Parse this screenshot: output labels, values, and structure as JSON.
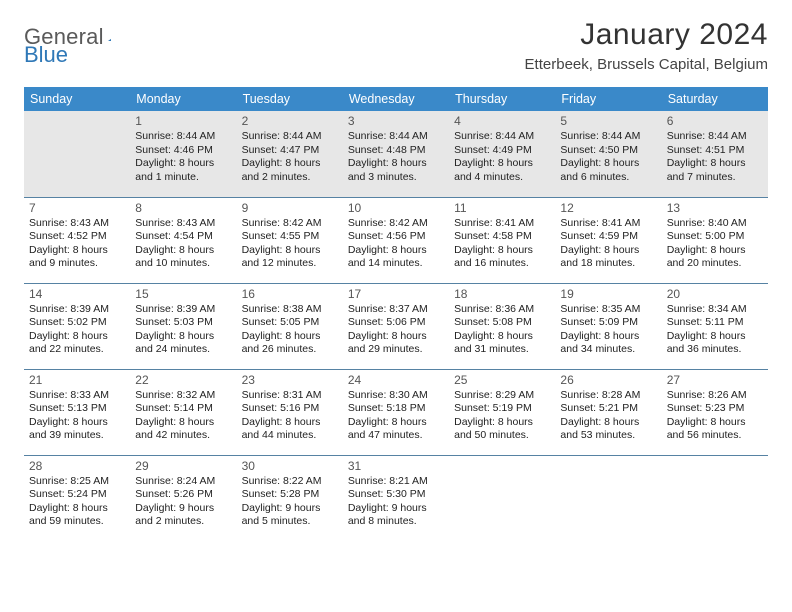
{
  "brand": {
    "word1": "General",
    "word2": "Blue"
  },
  "title": "January 2024",
  "location": "Etterbeek, Brussels Capital, Belgium",
  "colors": {
    "header_bg": "#3a89c9",
    "header_fg": "#ffffff",
    "row_divider": "#5682a3",
    "first_row_bg": "#e7e7e7",
    "logo_gray": "#5a5a5a",
    "logo_blue": "#2f78b7"
  },
  "day_headers": [
    "Sunday",
    "Monday",
    "Tuesday",
    "Wednesday",
    "Thursday",
    "Friday",
    "Saturday"
  ],
  "weeks": [
    [
      null,
      {
        "n": "1",
        "sr": "8:44 AM",
        "ss": "4:46 PM",
        "dl": "8 hours and 1 minute."
      },
      {
        "n": "2",
        "sr": "8:44 AM",
        "ss": "4:47 PM",
        "dl": "8 hours and 2 minutes."
      },
      {
        "n": "3",
        "sr": "8:44 AM",
        "ss": "4:48 PM",
        "dl": "8 hours and 3 minutes."
      },
      {
        "n": "4",
        "sr": "8:44 AM",
        "ss": "4:49 PM",
        "dl": "8 hours and 4 minutes."
      },
      {
        "n": "5",
        "sr": "8:44 AM",
        "ss": "4:50 PM",
        "dl": "8 hours and 6 minutes."
      },
      {
        "n": "6",
        "sr": "8:44 AM",
        "ss": "4:51 PM",
        "dl": "8 hours and 7 minutes."
      }
    ],
    [
      {
        "n": "7",
        "sr": "8:43 AM",
        "ss": "4:52 PM",
        "dl": "8 hours and 9 minutes."
      },
      {
        "n": "8",
        "sr": "8:43 AM",
        "ss": "4:54 PM",
        "dl": "8 hours and 10 minutes."
      },
      {
        "n": "9",
        "sr": "8:42 AM",
        "ss": "4:55 PM",
        "dl": "8 hours and 12 minutes."
      },
      {
        "n": "10",
        "sr": "8:42 AM",
        "ss": "4:56 PM",
        "dl": "8 hours and 14 minutes."
      },
      {
        "n": "11",
        "sr": "8:41 AM",
        "ss": "4:58 PM",
        "dl": "8 hours and 16 minutes."
      },
      {
        "n": "12",
        "sr": "8:41 AM",
        "ss": "4:59 PM",
        "dl": "8 hours and 18 minutes."
      },
      {
        "n": "13",
        "sr": "8:40 AM",
        "ss": "5:00 PM",
        "dl": "8 hours and 20 minutes."
      }
    ],
    [
      {
        "n": "14",
        "sr": "8:39 AM",
        "ss": "5:02 PM",
        "dl": "8 hours and 22 minutes."
      },
      {
        "n": "15",
        "sr": "8:39 AM",
        "ss": "5:03 PM",
        "dl": "8 hours and 24 minutes."
      },
      {
        "n": "16",
        "sr": "8:38 AM",
        "ss": "5:05 PM",
        "dl": "8 hours and 26 minutes."
      },
      {
        "n": "17",
        "sr": "8:37 AM",
        "ss": "5:06 PM",
        "dl": "8 hours and 29 minutes."
      },
      {
        "n": "18",
        "sr": "8:36 AM",
        "ss": "5:08 PM",
        "dl": "8 hours and 31 minutes."
      },
      {
        "n": "19",
        "sr": "8:35 AM",
        "ss": "5:09 PM",
        "dl": "8 hours and 34 minutes."
      },
      {
        "n": "20",
        "sr": "8:34 AM",
        "ss": "5:11 PM",
        "dl": "8 hours and 36 minutes."
      }
    ],
    [
      {
        "n": "21",
        "sr": "8:33 AM",
        "ss": "5:13 PM",
        "dl": "8 hours and 39 minutes."
      },
      {
        "n": "22",
        "sr": "8:32 AM",
        "ss": "5:14 PM",
        "dl": "8 hours and 42 minutes."
      },
      {
        "n": "23",
        "sr": "8:31 AM",
        "ss": "5:16 PM",
        "dl": "8 hours and 44 minutes."
      },
      {
        "n": "24",
        "sr": "8:30 AM",
        "ss": "5:18 PM",
        "dl": "8 hours and 47 minutes."
      },
      {
        "n": "25",
        "sr": "8:29 AM",
        "ss": "5:19 PM",
        "dl": "8 hours and 50 minutes."
      },
      {
        "n": "26",
        "sr": "8:28 AM",
        "ss": "5:21 PM",
        "dl": "8 hours and 53 minutes."
      },
      {
        "n": "27",
        "sr": "8:26 AM",
        "ss": "5:23 PM",
        "dl": "8 hours and 56 minutes."
      }
    ],
    [
      {
        "n": "28",
        "sr": "8:25 AM",
        "ss": "5:24 PM",
        "dl": "8 hours and 59 minutes."
      },
      {
        "n": "29",
        "sr": "8:24 AM",
        "ss": "5:26 PM",
        "dl": "9 hours and 2 minutes."
      },
      {
        "n": "30",
        "sr": "8:22 AM",
        "ss": "5:28 PM",
        "dl": "9 hours and 5 minutes."
      },
      {
        "n": "31",
        "sr": "8:21 AM",
        "ss": "5:30 PM",
        "dl": "9 hours and 8 minutes."
      },
      null,
      null,
      null
    ]
  ],
  "labels": {
    "sunrise": "Sunrise:",
    "sunset": "Sunset:",
    "daylight": "Daylight:"
  }
}
